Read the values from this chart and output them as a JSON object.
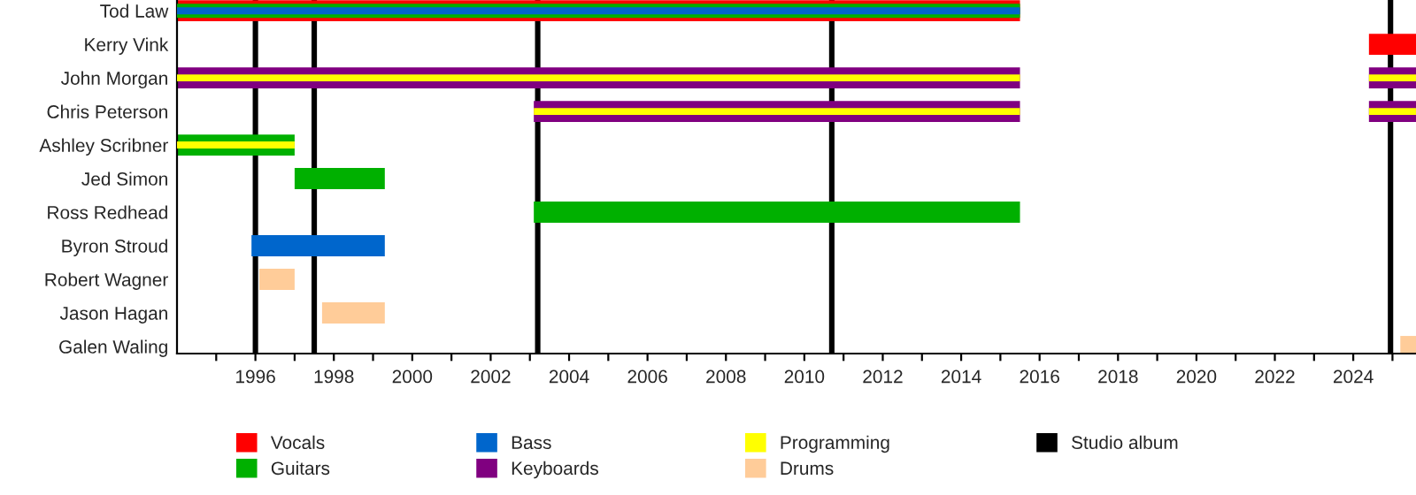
{
  "chart_data": {
    "type": "bar",
    "orientation": "horizontal",
    "categories": [
      "Tod Law",
      "Kerry Vink",
      "John Morgan",
      "Chris Peterson",
      "Ashley Scribner",
      "Jed Simon",
      "Ross Redhead",
      "Byron Stroud",
      "Robert Wagner",
      "Jason Hagan",
      "Galen Waling"
    ],
    "series": [
      {
        "name": "Vocals",
        "color": "#ff0000",
        "base": [
          1994.0,
          2024.4,
          null,
          null,
          null,
          null,
          null,
          null,
          null,
          null,
          null
        ],
        "values": [
          21.5,
          1.2,
          null,
          null,
          null,
          null,
          null,
          null,
          null,
          null,
          null
        ]
      },
      {
        "name": "Guitars",
        "color": "#00b000",
        "base": [
          1994.0,
          null,
          null,
          null,
          1994.0,
          1997.0,
          2003.1,
          null,
          null,
          null,
          null
        ],
        "values": [
          21.5,
          null,
          null,
          null,
          3.0,
          2.3,
          12.4,
          null,
          null,
          null,
          null
        ]
      },
      {
        "name": "Bass",
        "color": "#0066cc",
        "base": [
          1994.0,
          null,
          null,
          null,
          null,
          null,
          null,
          1995.9,
          null,
          null,
          null
        ],
        "values": [
          21.5,
          null,
          null,
          null,
          null,
          null,
          null,
          3.4,
          null,
          null,
          null
        ]
      },
      {
        "name": "Keyboards",
        "color": "#800080",
        "base": [
          null,
          null,
          1994.0,
          2003.1,
          null,
          null,
          null,
          null,
          null,
          null,
          null
        ],
        "values": [
          null,
          null,
          21.5,
          12.4,
          null,
          null,
          null,
          null,
          null,
          null,
          null
        ]
      },
      {
        "color": "#800080",
        "base": [
          null,
          null,
          2024.4,
          2024.4,
          null,
          null,
          null,
          null,
          null,
          null,
          null
        ],
        "values": [
          null,
          null,
          1.2,
          1.2,
          null,
          null,
          null,
          null,
          null,
          null,
          null
        ]
      },
      {
        "name": "Programming",
        "color": "#ffff00",
        "base": [
          null,
          null,
          1994.0,
          2003.1,
          1994.0,
          null,
          null,
          null,
          null,
          null,
          null
        ],
        "values": [
          null,
          null,
          21.5,
          12.4,
          3.0,
          null,
          null,
          null,
          null,
          null,
          null
        ]
      },
      {
        "color": "#ffff00",
        "base": [
          null,
          null,
          2024.4,
          2024.4,
          null,
          null,
          null,
          null,
          null,
          null,
          null
        ],
        "values": [
          null,
          null,
          1.2,
          1.2,
          null,
          null,
          null,
          null,
          null,
          null,
          null
        ]
      },
      {
        "name": "Drums",
        "color": "#ffcc99",
        "base": [
          null,
          null,
          null,
          null,
          null,
          null,
          null,
          null,
          1996.1,
          1997.7,
          2025.2
        ],
        "values": [
          null,
          null,
          null,
          null,
          null,
          null,
          null,
          null,
          0.9,
          1.6,
          0.4
        ]
      }
    ],
    "ref_lines": [
      {
        "axis": "x",
        "value": 1996.0,
        "label": "Studio album",
        "color": "#000000"
      },
      {
        "axis": "x",
        "value": 1997.5,
        "label": null,
        "color": "#000000"
      },
      {
        "axis": "x",
        "value": 2003.2,
        "label": null,
        "color": "#000000"
      },
      {
        "axis": "x",
        "value": 2010.7,
        "label": null,
        "color": "#000000"
      },
      {
        "axis": "x",
        "value": 2024.95,
        "label": null,
        "color": "#000000"
      }
    ],
    "xlim": [
      1994.0,
      2025.6
    ],
    "xticks": [
      {
        "value": 1995,
        "label": null
      },
      1996,
      {
        "value": 1997,
        "label": null
      },
      1998,
      {
        "value": 1999,
        "label": null
      },
      2000,
      {
        "value": 2001,
        "label": null
      },
      2002,
      {
        "value": 2003,
        "label": null
      },
      2004,
      {
        "value": 2005,
        "label": null
      },
      2006,
      {
        "value": 2007,
        "label": null
      },
      2008,
      {
        "value": 2009,
        "label": null
      },
      2010,
      {
        "value": 2011,
        "label": null
      },
      2012,
      {
        "value": 2013,
        "label": null
      },
      2014,
      {
        "value": 2015,
        "label": null
      },
      2016,
      {
        "value": 2017,
        "label": null
      },
      2018,
      {
        "value": 2019,
        "label": null
      },
      2020,
      {
        "value": 2021,
        "label": null
      },
      2022,
      {
        "value": 2023,
        "label": null
      },
      2024,
      {
        "value": 2025,
        "label": null
      }
    ],
    "legend": "bottom"
  }
}
